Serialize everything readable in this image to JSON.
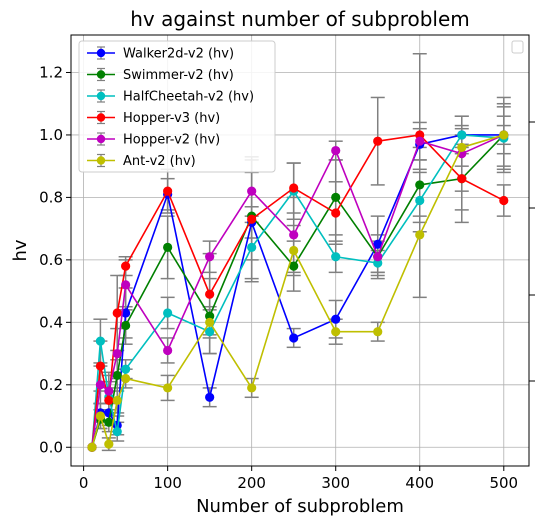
{
  "chart_data": {
    "type": "line",
    "title": "hv against number of subproblem",
    "xlabel": "Number of subproblem",
    "ylabel": "hv",
    "xlim": [
      -15,
      530
    ],
    "ylim": [
      -0.06,
      1.32
    ],
    "xticks": [
      0,
      100,
      200,
      300,
      400,
      500
    ],
    "yticks": [
      0.0,
      0.2,
      0.4,
      0.6,
      0.8,
      1.0,
      1.2
    ],
    "x_tick_labels": [
      "0",
      "100",
      "200",
      "300",
      "400",
      "500"
    ],
    "y_tick_labels": [
      "0.0",
      "0.2",
      "0.4",
      "0.6",
      "0.8",
      "1.0",
      "1.2"
    ],
    "grid": true,
    "legend_position": "top-left",
    "x": [
      10,
      20,
      30,
      40,
      50,
      100,
      150,
      200,
      250,
      300,
      350,
      400,
      450,
      500
    ],
    "series": [
      {
        "name": "Walker2d-v2 (hv)",
        "color": "#0000ff",
        "values": [
          0.0,
          0.11,
          0.11,
          0.07,
          0.43,
          0.81,
          0.16,
          0.72,
          0.35,
          0.41,
          0.65,
          0.97,
          1.0,
          1.0
        ],
        "err": [
          0.0,
          0.03,
          0.03,
          0.03,
          0.08,
          0.05,
          0.03,
          0.05,
          0.03,
          0.06,
          0.09,
          0.05,
          0.03,
          0.03
        ]
      },
      {
        "name": "Swimmer-v2 (hv)",
        "color": "#008000",
        "values": [
          0.0,
          0.09,
          0.08,
          0.23,
          0.39,
          0.64,
          0.42,
          0.74,
          0.58,
          0.8,
          0.61,
          0.84,
          0.86,
          1.0
        ],
        "err": [
          0.0,
          0.03,
          0.03,
          0.05,
          0.06,
          0.1,
          0.12,
          0.14,
          0.08,
          0.12,
          0.05,
          0.12,
          0.14,
          0.12
        ]
      },
      {
        "name": "HalfCheetah-v2 (hv)",
        "color": "#00bfbf",
        "values": [
          0.0,
          0.34,
          0.16,
          0.05,
          0.25,
          0.43,
          0.37,
          0.64,
          0.82,
          0.61,
          0.59,
          0.79,
          1.0,
          0.99
        ],
        "err": [
          0.0,
          0.07,
          0.05,
          0.03,
          0.03,
          0.05,
          0.07,
          0.1,
          0.09,
          0.05,
          0.04,
          0.1,
          0.06,
          0.1
        ]
      },
      {
        "name": "Hopper-v3 (hv)",
        "color": "#ff0000",
        "values": [
          0.0,
          0.26,
          0.15,
          0.43,
          0.58,
          0.82,
          0.49,
          0.73,
          0.83,
          0.75,
          0.98,
          1.0,
          0.86,
          0.79
        ],
        "err": [
          0.0,
          0.08,
          0.08,
          0.12,
          0.03,
          0.07,
          0.13,
          0.2,
          0.08,
          0.1,
          0.14,
          0.26,
          0.1,
          0.05
        ]
      },
      {
        "name": "Hopper-v2 (hv)",
        "color": "#bf00bf",
        "values": [
          0.0,
          0.2,
          0.18,
          0.3,
          0.52,
          0.31,
          0.61,
          0.82,
          0.68,
          0.95,
          0.61,
          0.98,
          0.94,
          1.0
        ],
        "err": [
          0.0,
          0.06,
          0.06,
          0.08,
          0.08,
          0.04,
          0.05,
          0.1,
          0.12,
          0.03,
          0.07,
          0.06,
          0.12,
          0.1
        ]
      },
      {
        "name": "Ant-v2 (hv)",
        "color": "#bfbf00",
        "values": [
          0.0,
          0.1,
          0.01,
          0.15,
          0.22,
          0.19,
          0.4,
          0.19,
          0.63,
          0.37,
          0.37,
          0.68,
          0.96,
          1.0
        ],
        "err": [
          0.0,
          0.04,
          0.02,
          0.04,
          0.03,
          0.04,
          0.05,
          0.03,
          0.08,
          0.04,
          0.03,
          0.2,
          0.06,
          0.06
        ]
      }
    ]
  }
}
